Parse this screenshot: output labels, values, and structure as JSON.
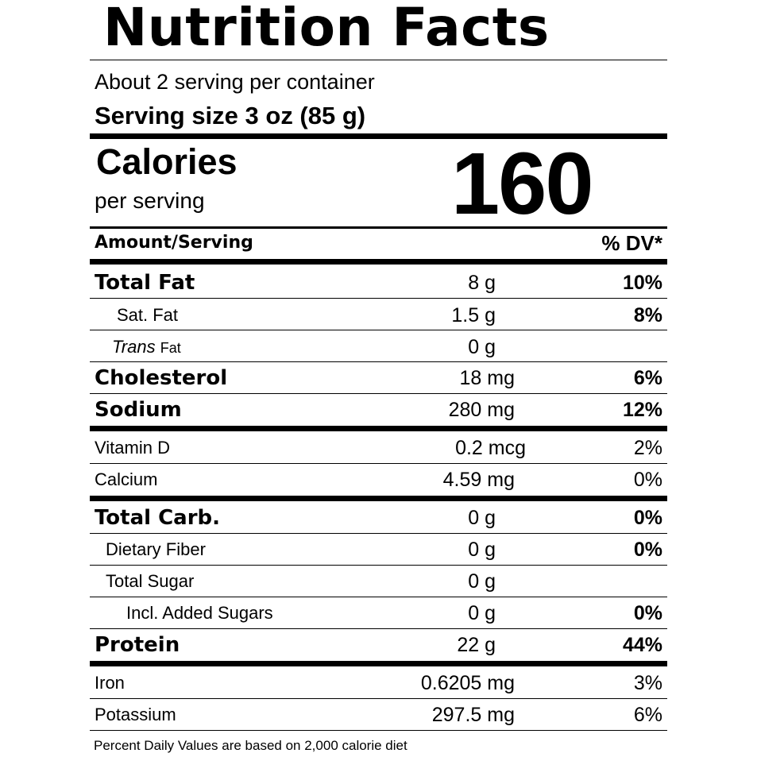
{
  "title": "Nutrition Facts",
  "servings_per_container": "About 2 serving per container",
  "serving_size": "Serving size 3 oz (85 g)",
  "calories": {
    "label": "Calories",
    "sublabel": "per serving",
    "value": "160"
  },
  "table_header": {
    "left": "Amount/Serving",
    "right": "% DV*"
  },
  "rows": [
    {
      "name": "Total Fat",
      "amount": "8 g",
      "dv": "10%"
    },
    {
      "name": "Sat. Fat",
      "amount": "1.5 g",
      "dv": "8%"
    },
    {
      "name_italic": "Trans",
      "name_rest": "Fat",
      "amount": "0 g",
      "dv": ""
    },
    {
      "name": "Cholesterol",
      "amount": "18 mg",
      "dv": "6%"
    },
    {
      "name": "Sodium",
      "amount": "280 mg",
      "dv": "12%"
    },
    {
      "name": "Vitamin D",
      "amount": "0.2 mcg",
      "dv": "2%"
    },
    {
      "name": "Calcium",
      "amount": "4.59 mg",
      "dv": "0%"
    },
    {
      "name": "Total Carb.",
      "amount": "0 g",
      "dv": "0%"
    },
    {
      "name": "Dietary Fiber",
      "amount": "0 g",
      "dv": "0%"
    },
    {
      "name": "Total Sugar",
      "amount": "0 g",
      "dv": ""
    },
    {
      "name": "Incl. Added Sugars",
      "amount": "0 g",
      "dv": "0%"
    },
    {
      "name": "Protein",
      "amount": "22 g",
      "dv": "44%"
    },
    {
      "name": "Iron",
      "amount": "0.6205 mg",
      "dv": "3%"
    },
    {
      "name": "Potassium",
      "amount": "297.5 mg",
      "dv": "6%"
    }
  ],
  "footnote": "Percent Daily Values are based on 2,000 calorie diet"
}
